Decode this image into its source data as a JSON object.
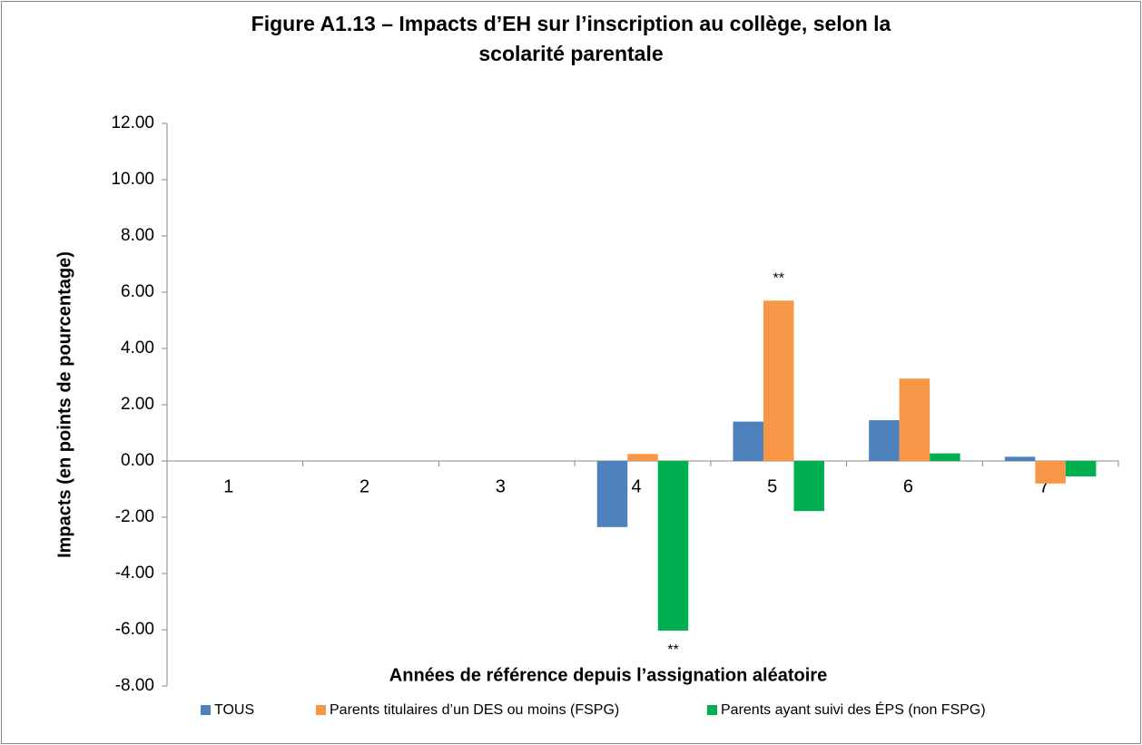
{
  "chart_data": {
    "type": "bar",
    "title": "Figure A1.13 – Impacts d’EH sur l’inscription au collège, selon la scolarité parentale",
    "x_label": "Années de référence depuis l’assignation aléatoire",
    "y_label": "Impacts (en points de pourcentage)",
    "categories": [
      "1",
      "2",
      "3",
      "4",
      "5",
      "6",
      "7"
    ],
    "series": [
      {
        "name": "TOUS",
        "color": "#4f81bd",
        "values": [
          null,
          null,
          null,
          -2.35,
          1.4,
          1.45,
          0.15
        ]
      },
      {
        "name": "Parents titulaires d’un DES ou moins (FSPG)",
        "color": "#f79646",
        "values": [
          null,
          null,
          null,
          0.25,
          5.7,
          2.93,
          -0.8
        ]
      },
      {
        "name": "Parents ayant suivi des ÉPS (non FSPG)",
        "color": "#00b050",
        "values": [
          null,
          null,
          null,
          -6.03,
          -1.78,
          0.27,
          -0.55
        ]
      }
    ],
    "annotations": [
      {
        "text": "**",
        "series": 1,
        "category": "5"
      },
      {
        "text": "**",
        "series": 2,
        "category": "4"
      }
    ],
    "ylim": [
      -8,
      12
    ],
    "yticks": [
      {
        "value": 12,
        "label": "12.00"
      },
      {
        "value": 10,
        "label": "10.00"
      },
      {
        "value": 8,
        "label": "8.00"
      },
      {
        "value": 6,
        "label": "6.00"
      },
      {
        "value": 4,
        "label": "4.00"
      },
      {
        "value": 2,
        "label": "2.00"
      },
      {
        "value": 0,
        "label": "0.00"
      },
      {
        "value": -2,
        "label": "-2.00"
      },
      {
        "value": -4,
        "label": "-4.00"
      },
      {
        "value": -6,
        "label": "-6.00"
      },
      {
        "value": -8,
        "label": "-8.00"
      }
    ],
    "legend": "bottom"
  }
}
